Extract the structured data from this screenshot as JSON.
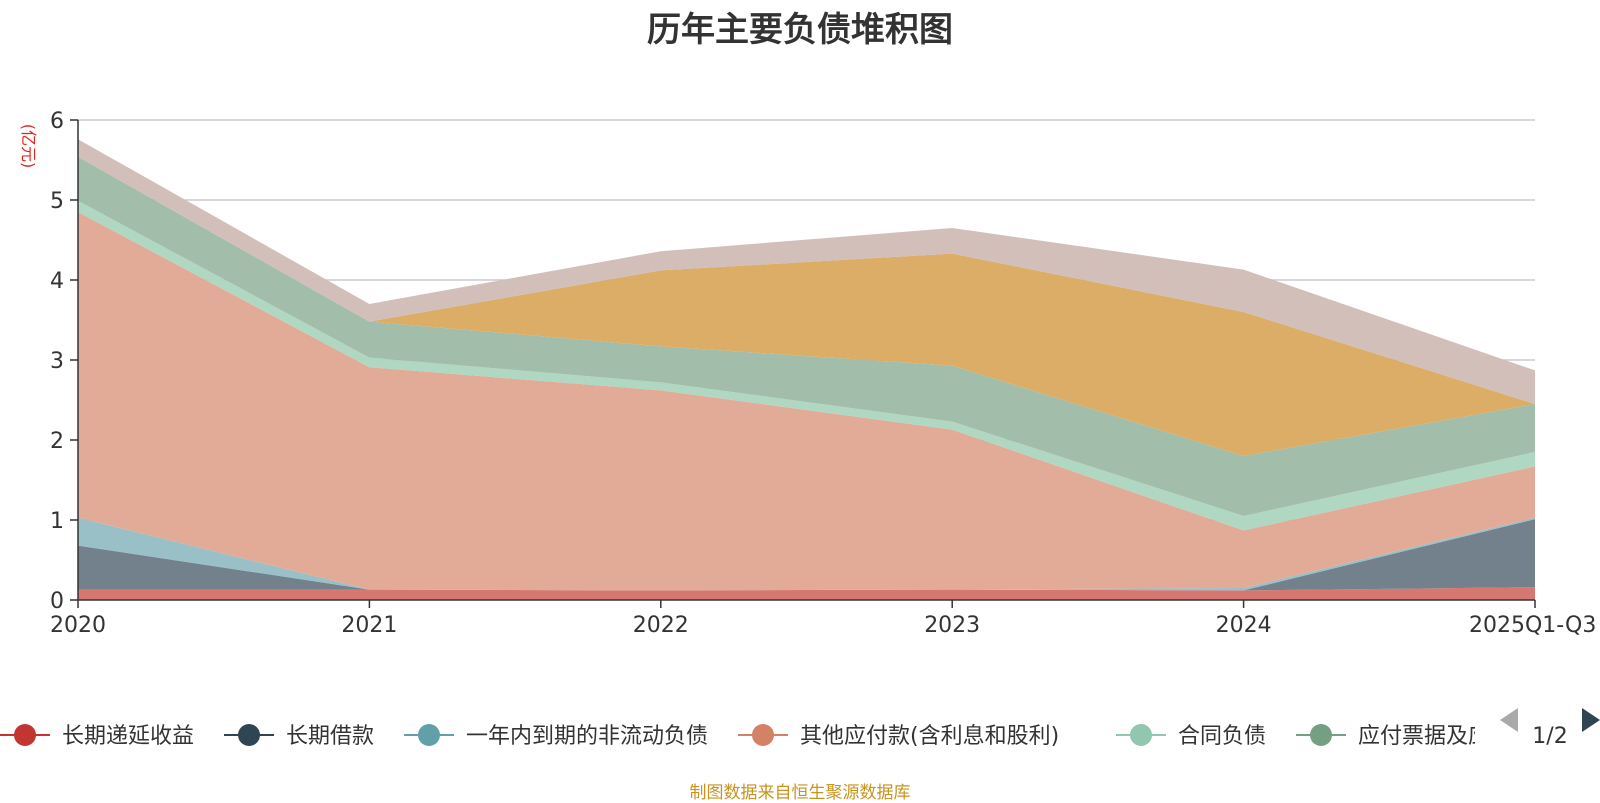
{
  "source_note": "制图数据来自恒生聚源数据库",
  "legend": {
    "page_indicator": "1/2"
  },
  "chart_data": {
    "type": "area",
    "stacked": true,
    "title": "历年主要负债堆积图",
    "ylabel": "(亿元)",
    "ylim": [
      0,
      6
    ],
    "yticks": [
      0,
      1,
      2,
      3,
      4,
      5,
      6
    ],
    "grid": true,
    "legend_position": "bottom",
    "categories": [
      "2020",
      "2021",
      "2022",
      "2023",
      "2024",
      "2025Q1-Q3"
    ],
    "series": [
      {
        "name": "长期递延收益",
        "color": "#c23531",
        "fill": "#d4706a",
        "values": [
          0.13,
          0.13,
          0.12,
          0.13,
          0.12,
          0.16
        ]
      },
      {
        "name": "长期借款",
        "color": "#2f4554",
        "fill": "#6b7a86",
        "values": [
          0.55,
          0.0,
          0.0,
          0.0,
          0.0,
          0.85
        ]
      },
      {
        "name": "一年内到期的非流动负债",
        "color": "#61a0a8",
        "fill": "#93bcc4",
        "values": [
          0.35,
          0.0,
          0.0,
          0.0,
          0.03,
          0.02
        ]
      },
      {
        "name": "其他应付款(含利息和股利)",
        "color": "#d48265",
        "fill": "#e0a691",
        "values": [
          3.82,
          2.78,
          2.5,
          2.0,
          0.72,
          0.64
        ]
      },
      {
        "name": "合同负债",
        "color": "#91c7ae",
        "fill": "#acd5bf",
        "values": [
          0.14,
          0.12,
          0.1,
          0.1,
          0.18,
          0.18
        ]
      },
      {
        "name": "应付票据及应付账款",
        "color": "#749f83",
        "fill": "#9eb9a6",
        "values": [
          0.55,
          0.45,
          0.45,
          0.7,
          0.75,
          0.6
        ]
      },
      {
        "name": "",
        "color": "#ca8622",
        "fill": "#d9a95f",
        "values": [
          0.0,
          0.0,
          0.95,
          1.4,
          1.8,
          0.0
        ]
      },
      {
        "name": "",
        "color": "#bda29a",
        "fill": "#d0bcb6",
        "values": [
          0.22,
          0.22,
          0.24,
          0.32,
          0.53,
          0.42
        ]
      }
    ]
  }
}
